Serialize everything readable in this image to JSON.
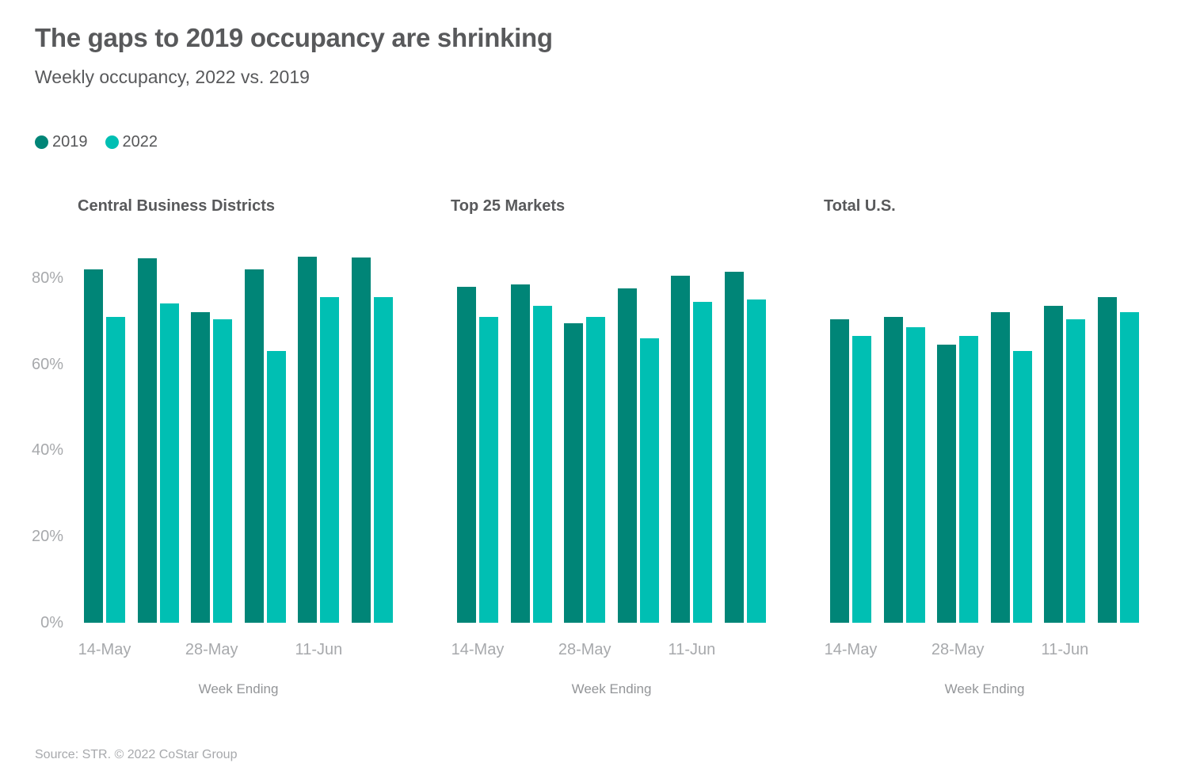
{
  "header": {
    "title": "The gaps to 2019 occupancy are shrinking",
    "subtitle": "Weekly occupancy, 2022 vs. 2019"
  },
  "legend": {
    "items": [
      {
        "label": "2019",
        "color": "#008577"
      },
      {
        "label": "2022",
        "color": "#00BFB3"
      }
    ]
  },
  "colors": {
    "series_2019": "#008577",
    "series_2022": "#00BFB3",
    "title_text": "#58595B",
    "axis_text": "#A7A9AC"
  },
  "footer": {
    "source": "Source: STR. © 2022 CoStar Group"
  },
  "chart_data": [
    {
      "type": "bar",
      "title": "Central Business Districts",
      "xlabel": "Week Ending",
      "ylim": [
        0,
        86.4
      ],
      "y_ticks": [
        0,
        20,
        40,
        60,
        80
      ],
      "y_tick_suffix": "%",
      "show_y_axis": true,
      "grid": false,
      "legend_position": "top-left",
      "x_ticks": [
        {
          "group": 0,
          "label": "14-May"
        },
        {
          "group": 2,
          "label": "28-May"
        },
        {
          "group": 4,
          "label": "11-Jun"
        }
      ],
      "series": [
        {
          "name": "2019",
          "values": [
            82,
            84.5,
            72,
            82,
            85,
            84.8
          ]
        },
        {
          "name": "2022",
          "values": [
            71,
            74,
            70.5,
            63,
            75.5,
            75.5
          ]
        }
      ]
    },
    {
      "type": "bar",
      "title": "Top 25 Markets",
      "xlabel": "Week Ending",
      "ylim": [
        0,
        86.4
      ],
      "y_ticks": [
        0,
        20,
        40,
        60,
        80
      ],
      "y_tick_suffix": "%",
      "show_y_axis": false,
      "grid": false,
      "legend_position": "top-left",
      "x_ticks": [
        {
          "group": 0,
          "label": "14-May"
        },
        {
          "group": 2,
          "label": "28-May"
        },
        {
          "group": 4,
          "label": "11-Jun"
        }
      ],
      "series": [
        {
          "name": "2019",
          "values": [
            78,
            78.5,
            69.5,
            77.5,
            80.5,
            81.5
          ]
        },
        {
          "name": "2022",
          "values": [
            71,
            73.5,
            71,
            66,
            74.5,
            75
          ]
        }
      ]
    },
    {
      "type": "bar",
      "title": "Total U.S.",
      "xlabel": "Week Ending",
      "ylim": [
        0,
        86.4
      ],
      "y_ticks": [
        0,
        20,
        40,
        60,
        80
      ],
      "y_tick_suffix": "%",
      "show_y_axis": false,
      "grid": false,
      "legend_position": "top-left",
      "x_ticks": [
        {
          "group": 0,
          "label": "14-May"
        },
        {
          "group": 2,
          "label": "28-May"
        },
        {
          "group": 4,
          "label": "11-Jun"
        }
      ],
      "series": [
        {
          "name": "2019",
          "values": [
            70.5,
            71,
            64.5,
            72,
            73.5,
            75.5
          ]
        },
        {
          "name": "2022",
          "values": [
            66.5,
            68.5,
            66.5,
            63,
            70.5,
            72
          ]
        }
      ]
    }
  ]
}
